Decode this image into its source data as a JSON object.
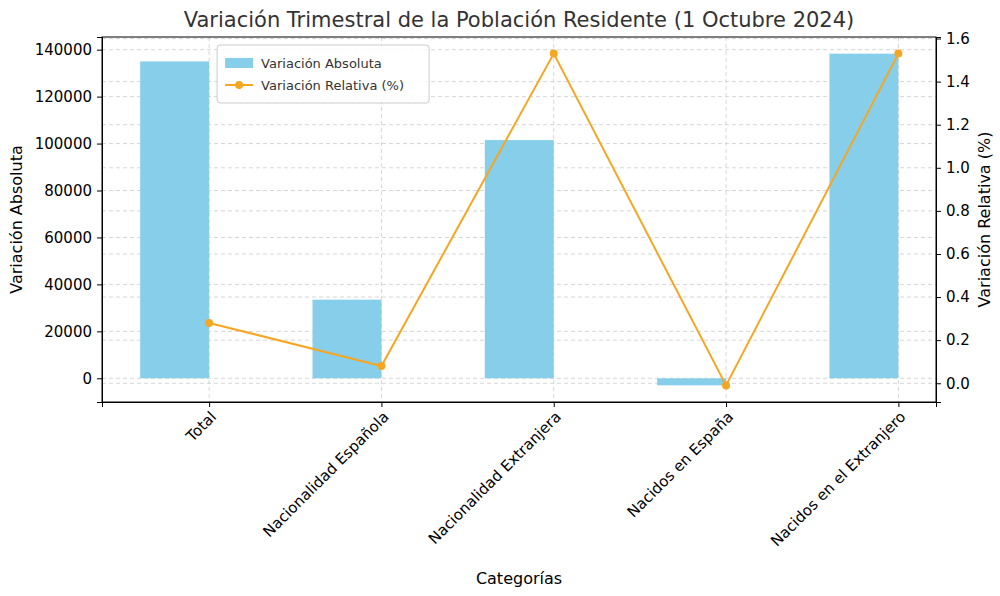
{
  "chart_data": {
    "type": "bar",
    "title": "Variación Trimestral de la Población Residente (1 Octubre 2024)",
    "x_label": "Categorías",
    "y_label": "Variación Absoluta",
    "y2_label": "Variación Relativa (%)",
    "categories": [
      "Total",
      "Nacionalidad Española",
      "Nacionalidad Extranjera",
      "Nacidos en España",
      "Nacidos en el Extranjero"
    ],
    "series": [
      {
        "name": "Variación Absoluta",
        "type": "bar",
        "color": "#87ceeb",
        "values": [
          135000,
          33500,
          101500,
          -3000,
          138300
        ]
      },
      {
        "name": "Variación Relativa (%)",
        "type": "line",
        "axis": "y2",
        "color": "#f5a623",
        "marker": "circle",
        "values": [
          0.28,
          0.08,
          1.53,
          -0.01,
          1.53
        ]
      }
    ],
    "ylim": [
      -10100,
      145400
    ],
    "yticks": [
      0,
      20000,
      40000,
      60000,
      80000,
      100000,
      120000,
      140000
    ],
    "y2lim": [
      -0.087,
      1.607
    ],
    "y2ticks": [
      {
        "value": 0,
        "label": "0.0"
      },
      0.2,
      0.4,
      0.6,
      0.8,
      {
        "value": 1,
        "label": "1.0"
      },
      1.2,
      1.4,
      1.6
    ],
    "grid": true,
    "legend": "upper left"
  }
}
